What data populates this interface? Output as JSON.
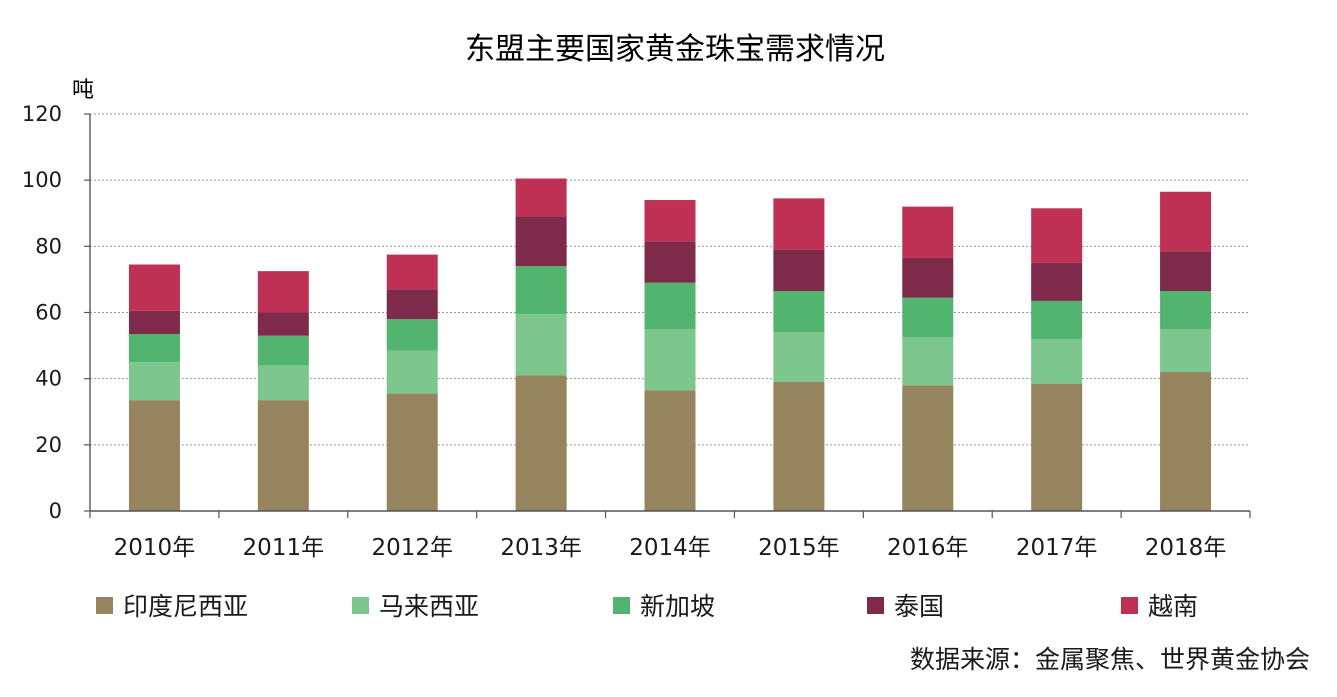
{
  "chart_data": {
    "type": "bar",
    "stacked": true,
    "title": "东盟主要国家黄金珠宝需求情况",
    "y_unit_label": "吨",
    "ylim": [
      0,
      120
    ],
    "yticks": [
      0,
      20,
      40,
      60,
      80,
      100,
      120
    ],
    "grid": true,
    "legend_position": "bottom",
    "categories": [
      "2010年",
      "2011年",
      "2012年",
      "2013年",
      "2014年",
      "2015年",
      "2016年",
      "2017年",
      "2018年"
    ],
    "series": [
      {
        "name": "印度尼西亚",
        "color": "#95845e",
        "values": [
          33.5,
          33.5,
          35.5,
          41.0,
          36.5,
          39.0,
          38.0,
          38.5,
          42.0
        ]
      },
      {
        "name": "马来西亚",
        "color": "#7dc78f",
        "values": [
          11.5,
          10.5,
          13.0,
          18.5,
          18.5,
          15.0,
          14.5,
          13.5,
          13.0
        ]
      },
      {
        "name": "新加坡",
        "color": "#52b46e",
        "values": [
          8.5,
          9.0,
          9.5,
          14.5,
          14.0,
          12.5,
          12.0,
          11.5,
          11.5
        ]
      },
      {
        "name": "泰国",
        "color": "#7e2a4a",
        "values": [
          7.0,
          7.0,
          9.0,
          15.0,
          12.5,
          12.5,
          12.0,
          11.5,
          12.0
        ]
      },
      {
        "name": "越南",
        "color": "#bf3055",
        "values": [
          14.0,
          12.5,
          10.5,
          11.5,
          12.5,
          15.5,
          15.5,
          16.5,
          18.0
        ]
      }
    ],
    "source_note": "数据来源：金属聚焦、世界黄金协会"
  }
}
